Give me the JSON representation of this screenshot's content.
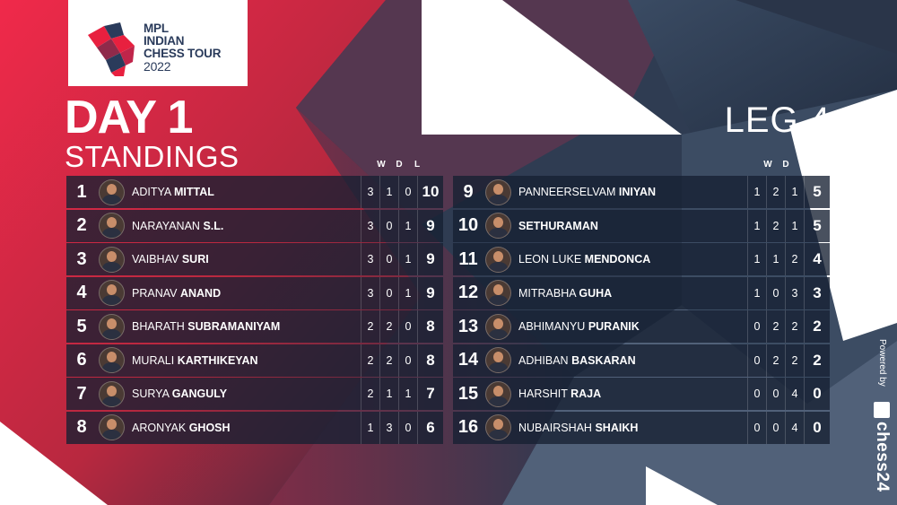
{
  "brand": {
    "line1": "MPL",
    "line2": "INDIAN",
    "line3": "CHESS TOUR",
    "year": "2022"
  },
  "title": {
    "day": "DAY 1",
    "subtitle": "STANDINGS"
  },
  "leg": "LEG 4",
  "columns": {
    "w": "W",
    "d": "D",
    "l": "L"
  },
  "colors": {
    "accent_red": "#e8203f",
    "dark_navy": "#1c2638",
    "slate": "#3b4a5e"
  },
  "powered": {
    "label": "Powered by",
    "brand": "chess24"
  },
  "standings_left": [
    {
      "rank": "1",
      "first": "ADITYA",
      "last": "MITTAL",
      "w": "3",
      "d": "1",
      "l": "0",
      "pts": "10"
    },
    {
      "rank": "2",
      "first": "NARAYANAN",
      "last": "S.L.",
      "w": "3",
      "d": "0",
      "l": "1",
      "pts": "9"
    },
    {
      "rank": "3",
      "first": "VAIBHAV",
      "last": "SURI",
      "w": "3",
      "d": "0",
      "l": "1",
      "pts": "9"
    },
    {
      "rank": "4",
      "first": "PRANAV",
      "last": "ANAND",
      "w": "3",
      "d": "0",
      "l": "1",
      "pts": "9"
    },
    {
      "rank": "5",
      "first": "BHARATH",
      "last": "SUBRAMANIYAM",
      "w": "2",
      "d": "2",
      "l": "0",
      "pts": "8"
    },
    {
      "rank": "6",
      "first": "MURALI",
      "last": "KARTHIKEYAN",
      "w": "2",
      "d": "2",
      "l": "0",
      "pts": "8"
    },
    {
      "rank": "7",
      "first": "SURYA",
      "last": "GANGULY",
      "w": "2",
      "d": "1",
      "l": "1",
      "pts": "7"
    },
    {
      "rank": "8",
      "first": "ARONYAK",
      "last": "GHOSH",
      "w": "1",
      "d": "3",
      "l": "0",
      "pts": "6"
    }
  ],
  "standings_right": [
    {
      "rank": "9",
      "first": "PANNEERSELVAM",
      "last": "INIYAN",
      "w": "1",
      "d": "2",
      "l": "1",
      "pts": "5"
    },
    {
      "rank": "10",
      "first": "",
      "last": "SETHURAMAN",
      "w": "1",
      "d": "2",
      "l": "1",
      "pts": "5"
    },
    {
      "rank": "11",
      "first": "LEON LUKE",
      "last": "MENDONCA",
      "w": "1",
      "d": "1",
      "l": "2",
      "pts": "4"
    },
    {
      "rank": "12",
      "first": "MITRABHA",
      "last": "GUHA",
      "w": "1",
      "d": "0",
      "l": "3",
      "pts": "3"
    },
    {
      "rank": "13",
      "first": "ABHIMANYU",
      "last": "PURANIK",
      "w": "0",
      "d": "2",
      "l": "2",
      "pts": "2"
    },
    {
      "rank": "14",
      "first": "ADHIBAN",
      "last": "BASKARAN",
      "w": "0",
      "d": "2",
      "l": "2",
      "pts": "2"
    },
    {
      "rank": "15",
      "first": "HARSHIT",
      "last": "RAJA",
      "w": "0",
      "d": "0",
      "l": "4",
      "pts": "0"
    },
    {
      "rank": "16",
      "first": "NUBAIRSHAH",
      "last": "SHAIKH",
      "w": "0",
      "d": "0",
      "l": "4",
      "pts": "0"
    }
  ]
}
